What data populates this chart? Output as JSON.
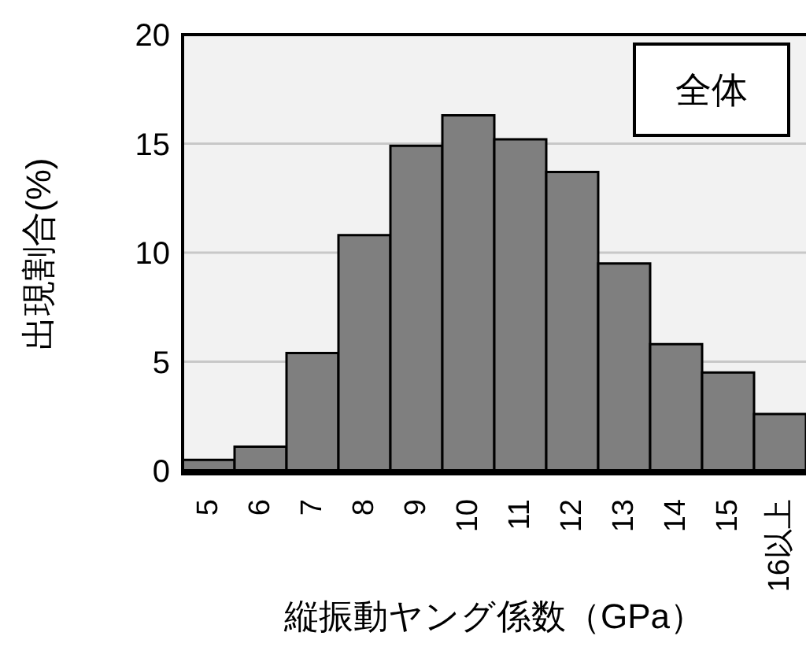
{
  "chart_data": {
    "type": "bar",
    "xlabel": "縦振動ヤング係数（GPa）",
    "ylabel": "出現割合(%)",
    "annotations": [
      "全体"
    ],
    "categories": [
      "5",
      "6",
      "7",
      "8",
      "9",
      "10",
      "11",
      "12",
      "13",
      "14",
      "15",
      "16以上"
    ],
    "values": [
      0.5,
      1.1,
      5.4,
      10.8,
      14.9,
      16.3,
      15.2,
      13.7,
      9.5,
      5.8,
      4.5,
      2.6
    ],
    "color": "#7f7f7f",
    "ylim": [
      0,
      20
    ],
    "yticks": [
      0,
      5,
      10,
      15,
      20
    ],
    "grid": "y"
  }
}
